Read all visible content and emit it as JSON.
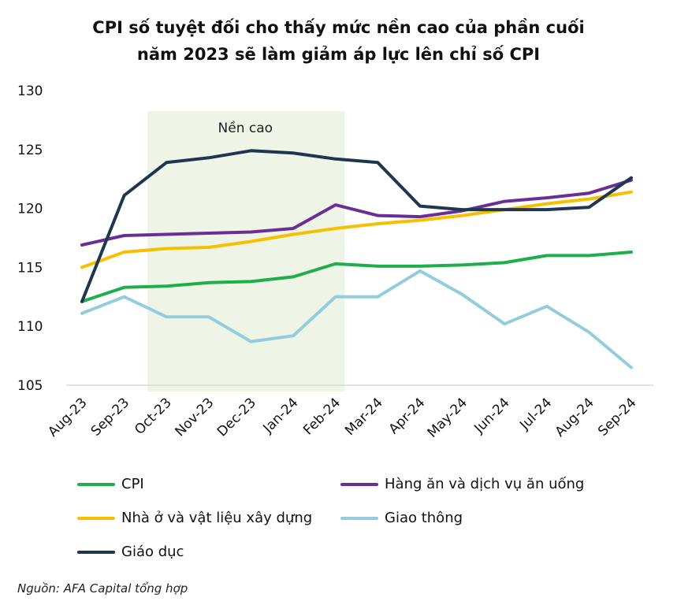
{
  "chart_data": {
    "type": "line",
    "title_lines": [
      "CPI số tuyệt đối cho thấy mức nền cao của phần cuối",
      "năm 2023 sẽ làm giảm áp lực lên chỉ số CPI"
    ],
    "xlabel": "",
    "ylabel": "",
    "categories": [
      "Aug-23",
      "Sep-23",
      "Oct-23",
      "Nov-23",
      "Dec-23",
      "Jan-24",
      "Feb-24",
      "Mar-24",
      "Apr-24",
      "May-24",
      "Jun-24",
      "Jul-24",
      "Aug-24",
      "Sep-24"
    ],
    "ylim": [
      105,
      130
    ],
    "yticks": [
      "105",
      "110",
      "115",
      "120",
      "125",
      "130"
    ],
    "grid": false,
    "highlight_band": {
      "label": "Nền cao",
      "from": "Oct-23",
      "to": "Feb-24",
      "color": "#eef5e6"
    },
    "series": [
      {
        "name": "CPI",
        "color": "#1fae4b",
        "values": [
          112.1,
          113.3,
          113.4,
          113.7,
          113.8,
          114.2,
          115.3,
          115.1,
          115.1,
          115.2,
          115.4,
          116.0,
          116.0,
          116.3
        ]
      },
      {
        "name": "Hàng ăn và dịch vụ ăn uống",
        "color": "#6a2f94",
        "values": [
          116.9,
          117.7,
          117.8,
          117.9,
          118.0,
          118.3,
          120.3,
          119.4,
          119.3,
          119.8,
          120.6,
          120.9,
          121.3,
          122.4
        ]
      },
      {
        "name": "Nhà ở và vật liệu xây dựng",
        "color": "#f6c000",
        "values": [
          115.0,
          116.3,
          116.6,
          116.7,
          117.2,
          117.8,
          118.3,
          118.7,
          119.0,
          119.4,
          119.9,
          120.4,
          120.8,
          121.4
        ]
      },
      {
        "name": "Giao thông",
        "color": "#93cddd",
        "values": [
          111.1,
          112.5,
          110.8,
          110.8,
          108.7,
          109.2,
          112.5,
          112.5,
          114.7,
          112.7,
          110.2,
          111.7,
          109.5,
          106.5
        ]
      },
      {
        "name": "Giáo dục",
        "color": "#1f3550",
        "values": [
          112.1,
          121.1,
          123.9,
          124.3,
          124.9,
          124.7,
          124.2,
          123.9,
          120.2,
          119.9,
          119.9,
          119.9,
          120.1,
          122.6
        ]
      }
    ],
    "legend_position": "bottom"
  },
  "source_note": "Nguồn: AFA Capital tổng hợp"
}
